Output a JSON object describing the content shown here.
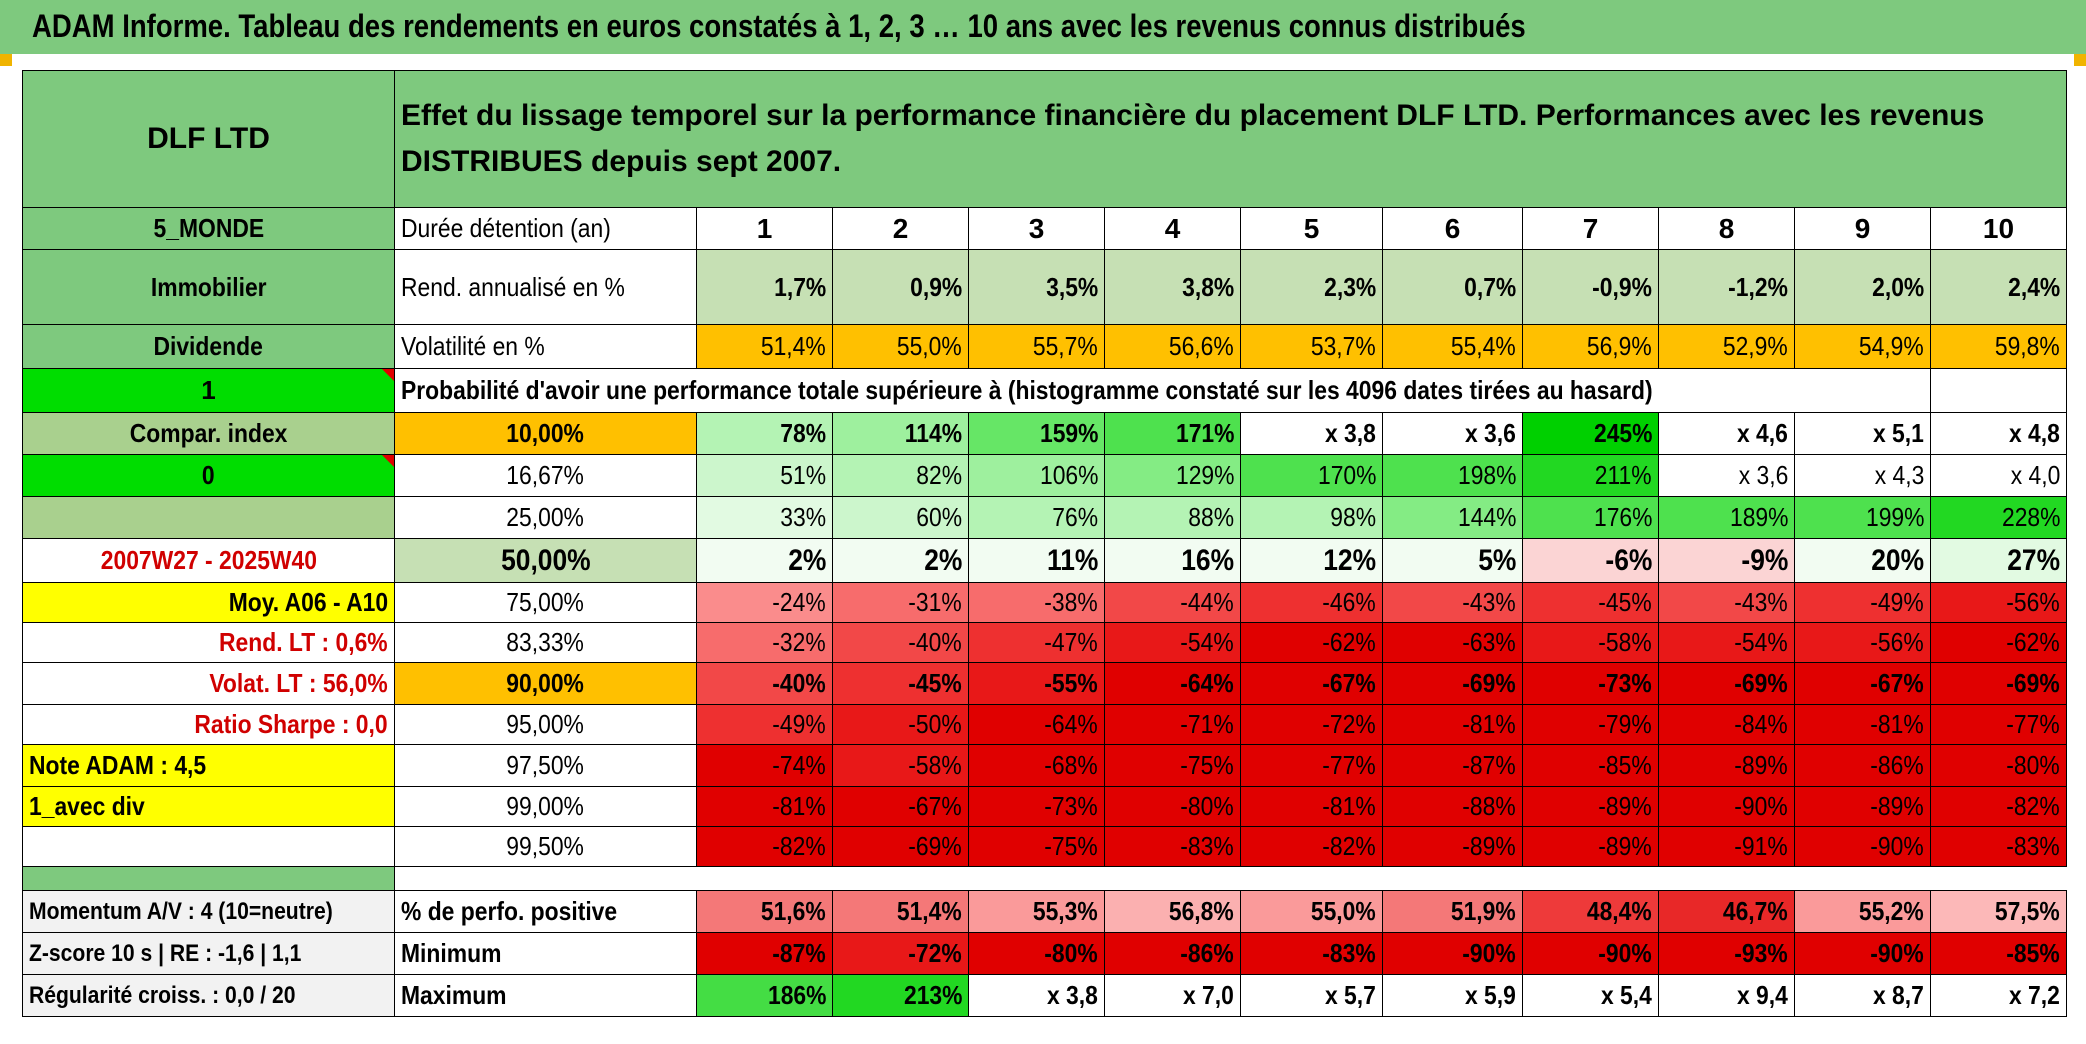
{
  "title": "ADAM Informe. Tableau des rendements en euros constatés à 1, 2, 3 … 10 ans avec les revenus connus distribués",
  "header": {
    "fund": "DLF LTD",
    "description": "Effet du lissage temporel sur la performance financière du placement DLF LTD. Performances avec les revenus DISTRIBUES depuis sept 2007."
  },
  "left": {
    "zone": "5_MONDE",
    "category": "Immobilier",
    "type": "Dividende",
    "flag1": "1",
    "compar": "Compar. index",
    "flag2": "0",
    "period": "2007W27 - 2025W40",
    "moy": "Moy. A06 - A10",
    "rend_lt": "Rend. LT :   0,6%",
    "volat_lt": "Volat. LT :   56,0%",
    "sharpe": "Ratio Sharpe :    0,0",
    "note": "Note ADAM : 4,5",
    "avec_div": "1_avec div"
  },
  "duration": {
    "label": "Durée détention (an)",
    "years": [
      "1",
      "2",
      "3",
      "4",
      "5",
      "6",
      "7",
      "8",
      "9",
      "10"
    ]
  },
  "rend": {
    "label": "Rend. annualisé en %",
    "values": [
      "1,7%",
      "0,9%",
      "3,5%",
      "3,8%",
      "2,3%",
      "0,7%",
      "-0,9%",
      "-1,2%",
      "2,0%",
      "2,4%"
    ]
  },
  "volat": {
    "label": "Volatilité en %",
    "values": [
      "51,4%",
      "55,0%",
      "55,7%",
      "56,6%",
      "53,7%",
      "55,4%",
      "56,9%",
      "52,9%",
      "54,9%",
      "59,8%"
    ]
  },
  "proba_header": "Probabilité d'avoir une performance totale supérieure à (histogramme constaté sur les 4096 dates tirées au hasard)",
  "proba": [
    {
      "p": "10,00%",
      "v": [
        "78%",
        "114%",
        "159%",
        "171%",
        "x 3,8",
        "x 3,6",
        "245%",
        "x 4,6",
        "x 5,1",
        "x 4,8"
      ]
    },
    {
      "p": "16,67%",
      "v": [
        "51%",
        "82%",
        "106%",
        "129%",
        "170%",
        "198%",
        "211%",
        "x 3,6",
        "x 4,3",
        "x 4,0"
      ]
    },
    {
      "p": "25,00%",
      "v": [
        "33%",
        "60%",
        "76%",
        "88%",
        "98%",
        "144%",
        "176%",
        "189%",
        "199%",
        "228%"
      ]
    },
    {
      "p": "50,00%",
      "v": [
        "2%",
        "2%",
        "11%",
        "16%",
        "12%",
        "5%",
        "-6%",
        "-9%",
        "20%",
        "27%"
      ]
    },
    {
      "p": "75,00%",
      "v": [
        "-24%",
        "-31%",
        "-38%",
        "-44%",
        "-46%",
        "-43%",
        "-45%",
        "-43%",
        "-49%",
        "-56%"
      ]
    },
    {
      "p": "83,33%",
      "v": [
        "-32%",
        "-40%",
        "-47%",
        "-54%",
        "-62%",
        "-63%",
        "-58%",
        "-54%",
        "-56%",
        "-62%"
      ]
    },
    {
      "p": "90,00%",
      "v": [
        "-40%",
        "-45%",
        "-55%",
        "-64%",
        "-67%",
        "-69%",
        "-73%",
        "-69%",
        "-67%",
        "-69%"
      ]
    },
    {
      "p": "95,00%",
      "v": [
        "-49%",
        "-50%",
        "-64%",
        "-71%",
        "-72%",
        "-81%",
        "-79%",
        "-84%",
        "-81%",
        "-77%"
      ]
    },
    {
      "p": "97,50%",
      "v": [
        "-74%",
        "-58%",
        "-68%",
        "-75%",
        "-77%",
        "-87%",
        "-85%",
        "-89%",
        "-86%",
        "-80%"
      ]
    },
    {
      "p": "99,00%",
      "v": [
        "-81%",
        "-67%",
        "-73%",
        "-80%",
        "-81%",
        "-88%",
        "-89%",
        "-90%",
        "-89%",
        "-82%"
      ]
    },
    {
      "p": "99,50%",
      "v": [
        "-82%",
        "-69%",
        "-75%",
        "-83%",
        "-82%",
        "-89%",
        "-89%",
        "-91%",
        "-90%",
        "-83%"
      ]
    }
  ],
  "bottom": [
    {
      "left": "Momentum A/V : 4 (10=neutre)",
      "label": "% de perfo. positive",
      "v": [
        "51,6%",
        "51,4%",
        "55,3%",
        "56,8%",
        "55,0%",
        "51,9%",
        "48,4%",
        "46,7%",
        "55,2%",
        "57,5%"
      ]
    },
    {
      "left": "Z-score 10 s | RE : -1,6 | 1,1",
      "label": "Minimum",
      "v": [
        "-87%",
        "-72%",
        "-80%",
        "-86%",
        "-83%",
        "-90%",
        "-90%",
        "-93%",
        "-90%",
        "-85%"
      ]
    },
    {
      "left": "Régularité croiss. : 0,0 / 20",
      "label": "Maximum",
      "v": [
        "186%",
        "213%",
        "x 3,8",
        "x 7,0",
        "x 5,7",
        "x 5,9",
        "x 5,4",
        "x 9,4",
        "x 8,7",
        "x 7,2"
      ]
    }
  ],
  "colors": {
    "header_green": "#7ec97e",
    "light_green": "#c6e0b4",
    "orange": "#ffc000",
    "yellow": "#ffff00",
    "bright_green": "#00dd00",
    "red_text": "#d00000"
  }
}
